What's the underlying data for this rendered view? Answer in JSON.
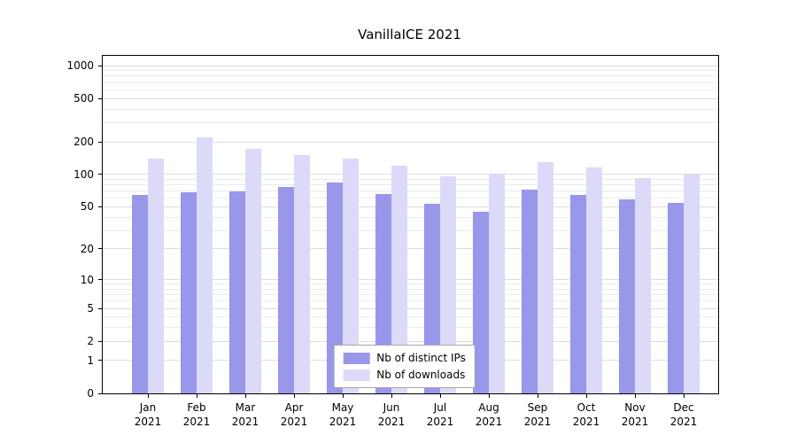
{
  "title": "VanillaICE 2021",
  "chart_data": {
    "type": "bar",
    "title": "VanillaICE 2021",
    "categories": [
      "Jan 2021",
      "Feb 2021",
      "Mar 2021",
      "Apr 2021",
      "May 2021",
      "Jun 2021",
      "Jul 2021",
      "Aug 2021",
      "Sep 2021",
      "Oct 2021",
      "Nov 2021",
      "Dec 2021"
    ],
    "series": [
      {
        "name": "Nb of distinct IPs",
        "color": "#9897e9",
        "values": [
          64,
          69,
          70,
          76,
          84,
          66,
          53,
          45,
          73,
          64,
          59,
          54
        ]
      },
      {
        "name": "Nb of downloads",
        "color": "#dbdaf8",
        "values": [
          140,
          220,
          172,
          152,
          140,
          120,
          96,
          100,
          130,
          115,
          92,
          100
        ]
      }
    ],
    "y_ticks": [
      0,
      1,
      2,
      5,
      10,
      20,
      50,
      100,
      200,
      500,
      1000
    ],
    "y_scale": "log",
    "ylim": [
      0,
      1000
    ],
    "grid": true,
    "legend_position": "bottom-center-inside"
  }
}
